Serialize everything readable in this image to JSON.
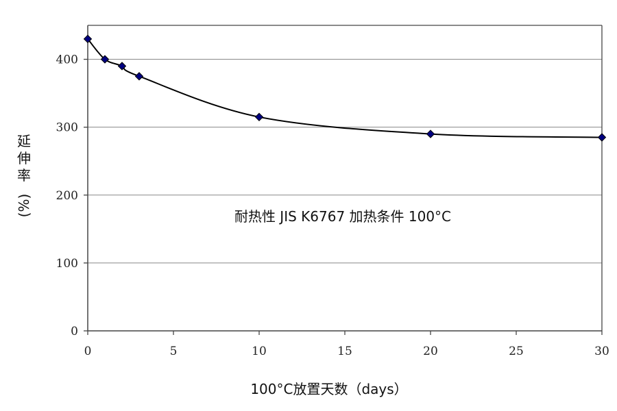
{
  "chart_data": {
    "type": "scatter",
    "title": "",
    "annotation": "耐热性 JIS K6767 加热条件 100°C",
    "xlabel": "100°C放置天数（days）",
    "ylabel_chars": [
      "延",
      "伸",
      "率"
    ],
    "ylabel_unit": "(%)",
    "xlim": [
      0,
      30
    ],
    "ylim": [
      0,
      450
    ],
    "x_ticks": [
      0,
      5,
      10,
      15,
      20,
      25,
      30
    ],
    "y_ticks": [
      0,
      100,
      200,
      300,
      400
    ],
    "grid": "horizontal",
    "legend": "none",
    "series": [
      {
        "x": [
          0,
          1,
          2,
          3,
          10,
          20,
          30
        ],
        "y": [
          430,
          400,
          390,
          375,
          315,
          290,
          285
        ],
        "line": "smooth",
        "marker": "diamond"
      }
    ],
    "colors": {
      "marker_fill": "#000080",
      "marker_stroke": "#000000",
      "line": "#000000",
      "grid": "#888888",
      "axis": "#444444"
    }
  }
}
